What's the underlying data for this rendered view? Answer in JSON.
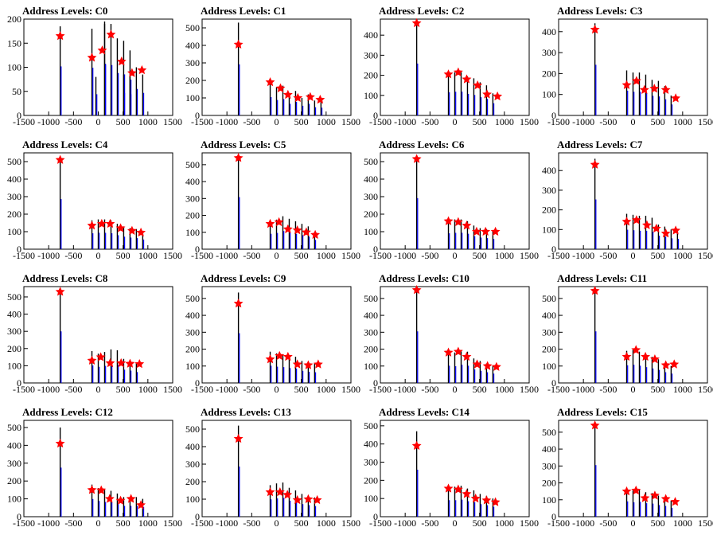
{
  "page": {
    "background": "#ffffff"
  },
  "colors": {
    "spike_black": "#000000",
    "spike_blue": "#0000ff",
    "marker": "#ff0000",
    "axis": "#000000"
  },
  "marker_shape": "star",
  "chart_data": [
    {
      "type": "bar",
      "title": "Address Levels: C0",
      "xlim": [
        -1500,
        1500
      ],
      "xticks": [
        -1500,
        -1000,
        -500,
        0,
        500,
        1000,
        1500
      ],
      "ylim": [
        0,
        200
      ],
      "yticks": [
        0,
        50,
        100,
        150,
        200
      ],
      "spikes_x": [
        -768,
        -128,
        -48,
        128,
        128,
        256,
        384,
        512,
        512,
        640,
        640,
        768,
        896
      ],
      "spikes_y": [
        185,
        180,
        80,
        195,
        190,
        190,
        160,
        155,
        85,
        135,
        80,
        100,
        85
      ],
      "peaks": [
        {
          "x": -768,
          "y": 165
        },
        {
          "x": -128,
          "y": 120
        },
        {
          "x": 80,
          "y": 135
        },
        {
          "x": 256,
          "y": 168
        },
        {
          "x": 470,
          "y": 112
        },
        {
          "x": 680,
          "y": 88
        },
        {
          "x": 880,
          "y": 94
        }
      ]
    },
    {
      "type": "bar",
      "title": "Address Levels: C1",
      "xlim": [
        -1500,
        1500
      ],
      "xticks": [
        -1500,
        -1000,
        -500,
        0,
        500,
        1000,
        1500
      ],
      "ylim": [
        0,
        550
      ],
      "yticks": [
        0,
        100,
        200,
        300,
        400,
        500
      ],
      "spikes_x": [
        -768,
        -128,
        0,
        128,
        256,
        384,
        512,
        640,
        768,
        896
      ],
      "spikes_y": [
        530,
        190,
        160,
        170,
        120,
        140,
        100,
        120,
        85,
        80
      ],
      "peaks": [
        {
          "x": -768,
          "y": 405
        },
        {
          "x": -128,
          "y": 190
        },
        {
          "x": 80,
          "y": 155
        },
        {
          "x": 230,
          "y": 118
        },
        {
          "x": 430,
          "y": 100
        },
        {
          "x": 680,
          "y": 105
        },
        {
          "x": 880,
          "y": 90
        }
      ]
    },
    {
      "type": "bar",
      "title": "Address Levels: C2",
      "xlim": [
        -1500,
        1500
      ],
      "xticks": [
        -1500,
        -1000,
        -500,
        0,
        500,
        1000,
        1500
      ],
      "ylim": [
        0,
        480
      ],
      "yticks": [
        0,
        100,
        200,
        300,
        400
      ],
      "spikes_x": [
        -768,
        -128,
        0,
        128,
        256,
        384,
        512,
        640,
        768
      ],
      "spikes_y": [
        470,
        210,
        215,
        215,
        195,
        185,
        165,
        150,
        110
      ],
      "peaks": [
        {
          "x": -768,
          "y": 460
        },
        {
          "x": -128,
          "y": 205
        },
        {
          "x": 70,
          "y": 215
        },
        {
          "x": 240,
          "y": 180
        },
        {
          "x": 460,
          "y": 150
        },
        {
          "x": 650,
          "y": 105
        },
        {
          "x": 860,
          "y": 95
        }
      ]
    },
    {
      "type": "bar",
      "title": "Address Levels: C3",
      "xlim": [
        -1500,
        1500
      ],
      "xticks": [
        -1500,
        -1000,
        -500,
        0,
        500,
        1000,
        1500
      ],
      "ylim": [
        0,
        460
      ],
      "yticks": [
        0,
        100,
        200,
        300,
        400
      ],
      "spikes_x": [
        -768,
        -128,
        0,
        128,
        256,
        384,
        512,
        640,
        768
      ],
      "spikes_y": [
        440,
        215,
        205,
        205,
        195,
        170,
        165,
        140,
        95
      ],
      "peaks": [
        {
          "x": -768,
          "y": 410
        },
        {
          "x": -128,
          "y": 145
        },
        {
          "x": 70,
          "y": 165
        },
        {
          "x": 230,
          "y": 122
        },
        {
          "x": 430,
          "y": 128
        },
        {
          "x": 660,
          "y": 122
        },
        {
          "x": 860,
          "y": 82
        }
      ]
    },
    {
      "type": "bar",
      "title": "Address Levels: C4",
      "xlim": [
        -1500,
        1500
      ],
      "xticks": [
        -1500,
        -1000,
        -500,
        0,
        500,
        1000,
        1500
      ],
      "ylim": [
        0,
        550
      ],
      "yticks": [
        0,
        100,
        200,
        300,
        400,
        500
      ],
      "spikes_x": [
        -768,
        -128,
        0,
        128,
        256,
        384,
        512,
        640,
        768,
        896
      ],
      "spikes_y": [
        520,
        165,
        170,
        170,
        165,
        145,
        130,
        120,
        115,
        100
      ],
      "peaks": [
        {
          "x": -768,
          "y": 510
        },
        {
          "x": -128,
          "y": 135
        },
        {
          "x": 70,
          "y": 145
        },
        {
          "x": 240,
          "y": 145
        },
        {
          "x": 450,
          "y": 120
        },
        {
          "x": 680,
          "y": 105
        },
        {
          "x": 860,
          "y": 95
        }
      ]
    },
    {
      "type": "bar",
      "title": "Address Levels: C5",
      "xlim": [
        -1500,
        1500
      ],
      "xticks": [
        -1500,
        -1000,
        -500,
        0,
        500,
        1000,
        1500
      ],
      "ylim": [
        0,
        570
      ],
      "yticks": [
        0,
        100,
        200,
        300,
        400,
        500
      ],
      "spikes_x": [
        -768,
        -128,
        0,
        128,
        256,
        384,
        512,
        640,
        768
      ],
      "spikes_y": [
        560,
        165,
        175,
        195,
        180,
        165,
        150,
        135,
        100
      ],
      "peaks": [
        {
          "x": -768,
          "y": 540
        },
        {
          "x": -128,
          "y": 150
        },
        {
          "x": 50,
          "y": 160
        },
        {
          "x": 230,
          "y": 118
        },
        {
          "x": 420,
          "y": 112
        },
        {
          "x": 600,
          "y": 100
        },
        {
          "x": 780,
          "y": 85
        }
      ]
    },
    {
      "type": "bar",
      "title": "Address Levels: C6",
      "xlim": [
        -1500,
        1500
      ],
      "xticks": [
        -1500,
        -1000,
        -500,
        0,
        500,
        1000,
        1500
      ],
      "ylim": [
        0,
        550
      ],
      "yticks": [
        0,
        100,
        200,
        300,
        400,
        500
      ],
      "spikes_x": [
        -768,
        -128,
        0,
        128,
        256,
        384,
        512,
        640,
        768
      ],
      "spikes_y": [
        530,
        165,
        170,
        170,
        160,
        135,
        120,
        115,
        105
      ],
      "peaks": [
        {
          "x": -768,
          "y": 515
        },
        {
          "x": -128,
          "y": 160
        },
        {
          "x": 70,
          "y": 155
        },
        {
          "x": 240,
          "y": 135
        },
        {
          "x": 440,
          "y": 100
        },
        {
          "x": 620,
          "y": 100
        },
        {
          "x": 820,
          "y": 100
        }
      ]
    },
    {
      "type": "bar",
      "title": "Address Levels: C7",
      "xlim": [
        -1500,
        1500
      ],
      "xticks": [
        -1500,
        -1000,
        -500,
        0,
        500,
        1000,
        1500
      ],
      "ylim": [
        0,
        490
      ],
      "yticks": [
        0,
        100,
        200,
        300,
        400
      ],
      "spikes_x": [
        -768,
        -128,
        0,
        128,
        256,
        384,
        512,
        640,
        768,
        896
      ],
      "spikes_y": [
        460,
        180,
        175,
        170,
        170,
        160,
        125,
        115,
        100,
        95
      ],
      "peaks": [
        {
          "x": -768,
          "y": 430
        },
        {
          "x": -128,
          "y": 140
        },
        {
          "x": 70,
          "y": 148
        },
        {
          "x": 280,
          "y": 122
        },
        {
          "x": 470,
          "y": 105
        },
        {
          "x": 660,
          "y": 80
        },
        {
          "x": 860,
          "y": 95
        }
      ]
    },
    {
      "type": "bar",
      "title": "Address Levels: C8",
      "xlim": [
        -1500,
        1500
      ],
      "xticks": [
        -1500,
        -1000,
        -500,
        0,
        500,
        1000,
        1500
      ],
      "ylim": [
        0,
        560
      ],
      "yticks": [
        0,
        100,
        200,
        300,
        400,
        500
      ],
      "spikes_x": [
        -768,
        -128,
        0,
        128,
        256,
        384,
        512,
        640,
        768
      ],
      "spikes_y": [
        545,
        185,
        170,
        180,
        195,
        190,
        140,
        130,
        115
      ],
      "peaks": [
        {
          "x": -768,
          "y": 530
        },
        {
          "x": -128,
          "y": 130
        },
        {
          "x": 50,
          "y": 150
        },
        {
          "x": 240,
          "y": 115
        },
        {
          "x": 460,
          "y": 115
        },
        {
          "x": 640,
          "y": 112
        },
        {
          "x": 830,
          "y": 110
        }
      ]
    },
    {
      "type": "bar",
      "title": "Address Levels: C9",
      "xlim": [
        -1500,
        1500
      ],
      "xticks": [
        -1500,
        -1000,
        -500,
        0,
        500,
        1000,
        1500
      ],
      "ylim": [
        0,
        570
      ],
      "yticks": [
        0,
        100,
        200,
        300,
        400,
        500
      ],
      "spikes_x": [
        -768,
        -128,
        0,
        128,
        256,
        384,
        512,
        640,
        768
      ],
      "spikes_y": [
        535,
        185,
        175,
        170,
        160,
        155,
        130,
        120,
        115
      ],
      "peaks": [
        {
          "x": -768,
          "y": 470
        },
        {
          "x": -128,
          "y": 140
        },
        {
          "x": 60,
          "y": 160
        },
        {
          "x": 230,
          "y": 155
        },
        {
          "x": 420,
          "y": 110
        },
        {
          "x": 640,
          "y": 105
        },
        {
          "x": 840,
          "y": 110
        }
      ]
    },
    {
      "type": "bar",
      "title": "Address Levels: C10",
      "xlim": [
        -1500,
        1500
      ],
      "xticks": [
        -1500,
        -1000,
        -500,
        0,
        500,
        1000,
        1500
      ],
      "ylim": [
        0,
        570
      ],
      "yticks": [
        0,
        100,
        200,
        300,
        400,
        500
      ],
      "spikes_x": [
        -768,
        -128,
        0,
        128,
        256,
        384,
        512,
        640,
        768
      ],
      "spikes_y": [
        555,
        185,
        180,
        195,
        185,
        145,
        130,
        115,
        100
      ],
      "peaks": [
        {
          "x": -768,
          "y": 550
        },
        {
          "x": -128,
          "y": 180
        },
        {
          "x": 70,
          "y": 185
        },
        {
          "x": 240,
          "y": 155
        },
        {
          "x": 450,
          "y": 110
        },
        {
          "x": 660,
          "y": 100
        },
        {
          "x": 840,
          "y": 95
        }
      ]
    },
    {
      "type": "bar",
      "title": "Address Levels: C11",
      "xlim": [
        -1500,
        1500
      ],
      "xticks": [
        -1500,
        -1000,
        -500,
        0,
        500,
        1000,
        1500
      ],
      "ylim": [
        0,
        570
      ],
      "yticks": [
        0,
        100,
        200,
        300,
        400,
        500
      ],
      "spikes_x": [
        -768,
        -128,
        0,
        128,
        256,
        384,
        512,
        640,
        768
      ],
      "spikes_y": [
        555,
        190,
        195,
        185,
        170,
        155,
        140,
        115,
        100
      ],
      "peaks": [
        {
          "x": -768,
          "y": 545
        },
        {
          "x": -128,
          "y": 155
        },
        {
          "x": 60,
          "y": 195
        },
        {
          "x": 250,
          "y": 155
        },
        {
          "x": 440,
          "y": 140
        },
        {
          "x": 660,
          "y": 105
        },
        {
          "x": 830,
          "y": 110
        }
      ]
    },
    {
      "type": "bar",
      "title": "Address Levels: C12",
      "xlim": [
        -1500,
        1500
      ],
      "xticks": [
        -1500,
        -1000,
        -500,
        0,
        500,
        1000,
        1500
      ],
      "ylim": [
        0,
        540
      ],
      "yticks": [
        0,
        100,
        200,
        300,
        400,
        500
      ],
      "spikes_x": [
        -768,
        -128,
        0,
        128,
        256,
        384,
        512,
        640,
        768,
        896
      ],
      "spikes_y": [
        500,
        180,
        160,
        150,
        145,
        130,
        110,
        110,
        110,
        100
      ],
      "peaks": [
        {
          "x": -768,
          "y": 410
        },
        {
          "x": -128,
          "y": 150
        },
        {
          "x": 60,
          "y": 148
        },
        {
          "x": 230,
          "y": 100
        },
        {
          "x": 450,
          "y": 90
        },
        {
          "x": 660,
          "y": 100
        },
        {
          "x": 860,
          "y": 65
        }
      ]
    },
    {
      "type": "bar",
      "title": "Address Levels: C13",
      "xlim": [
        -1500,
        1500
      ],
      "xticks": [
        -1500,
        -1000,
        -500,
        0,
        500,
        1000,
        1500
      ],
      "ylim": [
        0,
        550
      ],
      "yticks": [
        0,
        100,
        200,
        300,
        400,
        500
      ],
      "spikes_x": [
        -768,
        -128,
        0,
        128,
        256,
        384,
        512,
        640,
        768
      ],
      "spikes_y": [
        520,
        180,
        190,
        195,
        165,
        150,
        130,
        120,
        110
      ],
      "peaks": [
        {
          "x": -768,
          "y": 445
        },
        {
          "x": -128,
          "y": 140
        },
        {
          "x": 70,
          "y": 140
        },
        {
          "x": 220,
          "y": 125
        },
        {
          "x": 420,
          "y": 95
        },
        {
          "x": 640,
          "y": 100
        },
        {
          "x": 820,
          "y": 95
        }
      ]
    },
    {
      "type": "bar",
      "title": "Address Levels: C14",
      "xlim": [
        -1500,
        1500
      ],
      "xticks": [
        -1500,
        -1000,
        -500,
        0,
        500,
        1000,
        1500
      ],
      "ylim": [
        0,
        530
      ],
      "yticks": [
        0,
        100,
        200,
        300,
        400,
        500
      ],
      "spikes_x": [
        -768,
        -128,
        0,
        128,
        256,
        384,
        512,
        640,
        768
      ],
      "spikes_y": [
        470,
        165,
        165,
        170,
        155,
        145,
        125,
        115,
        100
      ],
      "peaks": [
        {
          "x": -768,
          "y": 390
        },
        {
          "x": -128,
          "y": 155
        },
        {
          "x": 70,
          "y": 150
        },
        {
          "x": 240,
          "y": 125
        },
        {
          "x": 420,
          "y": 100
        },
        {
          "x": 640,
          "y": 90
        },
        {
          "x": 820,
          "y": 80
        }
      ]
    },
    {
      "type": "bar",
      "title": "Address Levels: C15",
      "xlim": [
        -1500,
        1500
      ],
      "xticks": [
        -1500,
        -1000,
        -500,
        0,
        500,
        1000,
        1500
      ],
      "ylim": [
        0,
        570
      ],
      "yticks": [
        0,
        100,
        200,
        300,
        400,
        500
      ],
      "spikes_x": [
        -768,
        -128,
        0,
        128,
        256,
        384,
        512,
        640,
        768
      ],
      "spikes_y": [
        555,
        165,
        155,
        160,
        145,
        140,
        125,
        115,
        95
      ],
      "peaks": [
        {
          "x": -768,
          "y": 540
        },
        {
          "x": -128,
          "y": 150
        },
        {
          "x": 60,
          "y": 155
        },
        {
          "x": 240,
          "y": 110
        },
        {
          "x": 440,
          "y": 125
        },
        {
          "x": 660,
          "y": 105
        },
        {
          "x": 850,
          "y": 88
        }
      ]
    }
  ]
}
